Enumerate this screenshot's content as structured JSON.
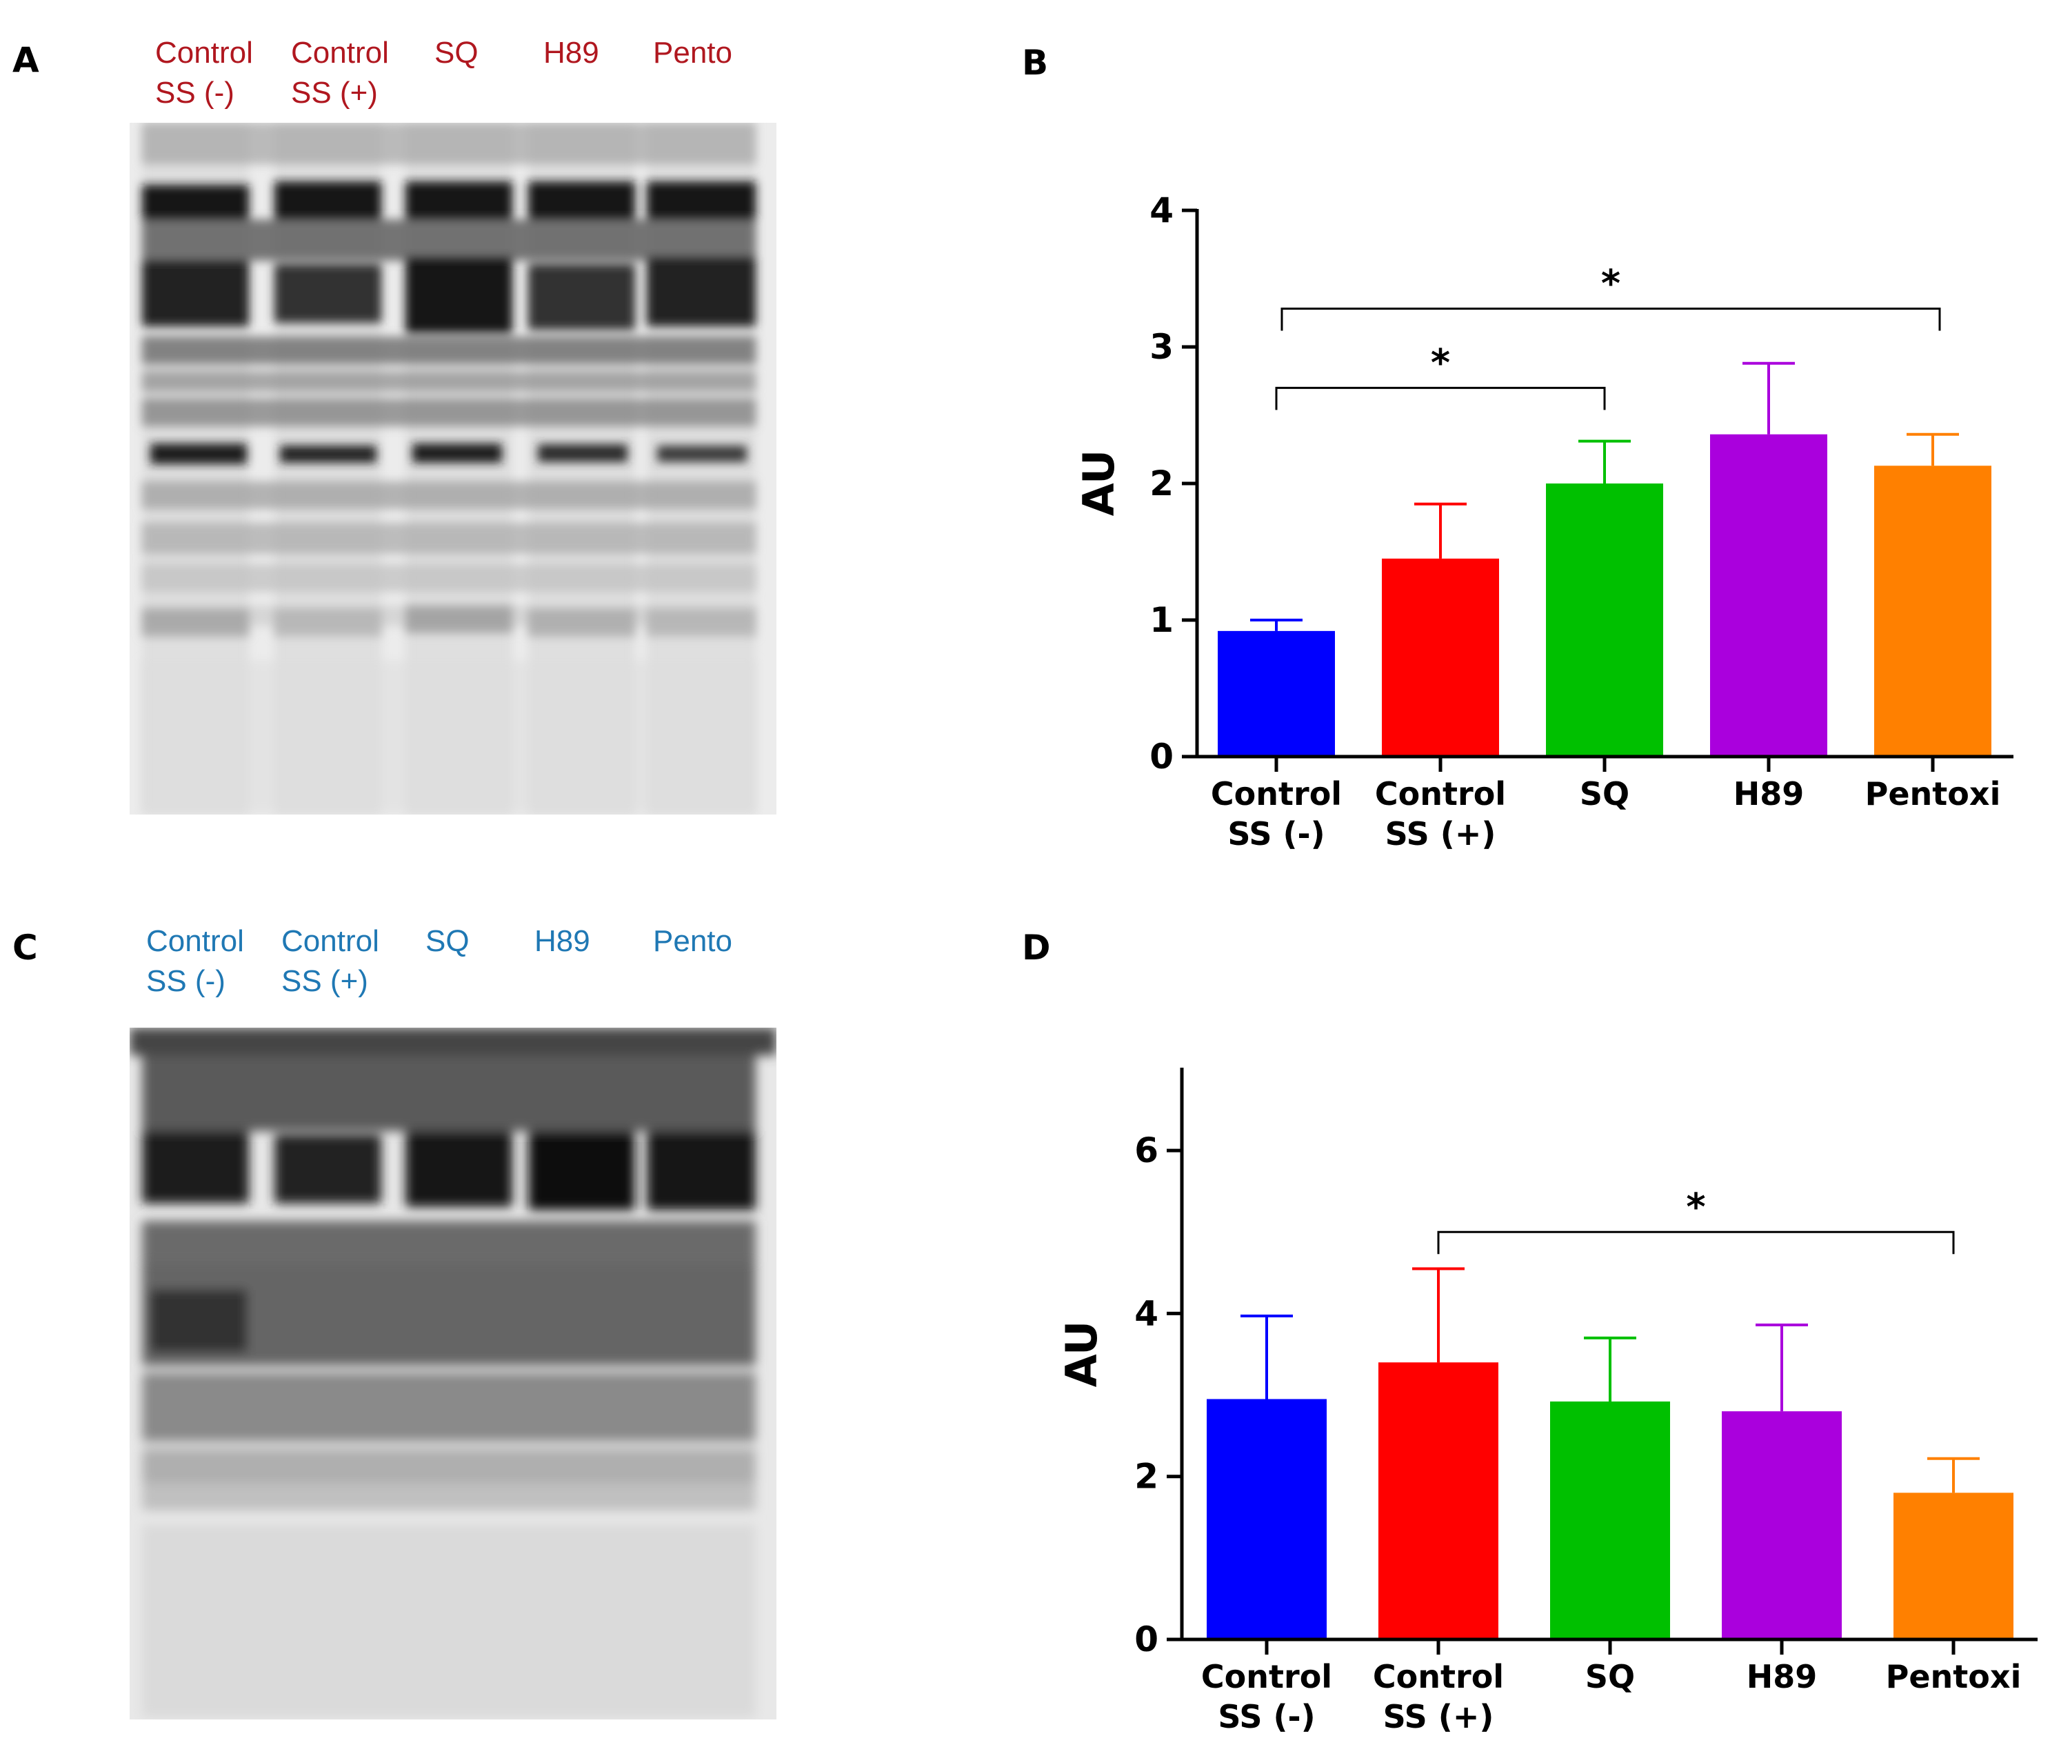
{
  "panels": {
    "a": {
      "letter": "A"
    },
    "b": {
      "letter": "B"
    },
    "c": {
      "letter": "C"
    },
    "d": {
      "letter": "D"
    }
  },
  "blot_a": {
    "label_color": "#b0171f",
    "lanes": [
      "Control\nSS (-)",
      "Control\nSS (+)",
      "SQ",
      "H89",
      "Pento"
    ]
  },
  "blot_c": {
    "label_color": "#1f78b4",
    "lanes": [
      "Control\nSS (-)",
      "Control\nSS (+)",
      "SQ",
      "H89",
      "Pento"
    ]
  },
  "colors": {
    "control_ss_minus": "#0000ff",
    "control_ss_plus": "#ff0000",
    "sq": "#00c000",
    "h89": "#aa00dd",
    "pentoxi": "#ff8000"
  },
  "chart_data": [
    {
      "type": "bar",
      "panel": "B",
      "categories": [
        "Control\nSS (-)",
        "Control\nSS (+)",
        "SQ",
        "H89",
        "Pentoxi"
      ],
      "values": [
        0.92,
        1.45,
        2.0,
        2.36,
        2.13
      ],
      "errors": [
        0.08,
        0.4,
        0.31,
        0.52,
        0.23
      ],
      "ylabel": "AU",
      "ylim": [
        0,
        4
      ],
      "yticks": [
        "0",
        "1",
        "2",
        "3",
        "4"
      ],
      "yticks_values": [
        0,
        1,
        2,
        3,
        4
      ],
      "significance": [
        {
          "from": 0,
          "to": 2,
          "label": "*",
          "level": 2.7
        },
        {
          "from": 0,
          "to": 4,
          "label": "*",
          "level": 3.28
        }
      ]
    },
    {
      "type": "bar",
      "panel": "D",
      "categories": [
        "Control\nSS (-)",
        "Control\nSS (+)",
        "SQ",
        "H89",
        "Pentoxi"
      ],
      "values": [
        2.95,
        3.4,
        2.92,
        2.8,
        1.8
      ],
      "errors": [
        1.02,
        1.15,
        0.78,
        1.06,
        0.42
      ],
      "ylabel": "AU",
      "ylim": [
        0,
        7
      ],
      "yticks": [
        "0",
        "2",
        "4",
        "6"
      ],
      "yticks_values": [
        0,
        2,
        4,
        6
      ],
      "significance": [
        {
          "from": 1,
          "to": 4,
          "label": "*",
          "level": 5.0
        }
      ]
    }
  ]
}
